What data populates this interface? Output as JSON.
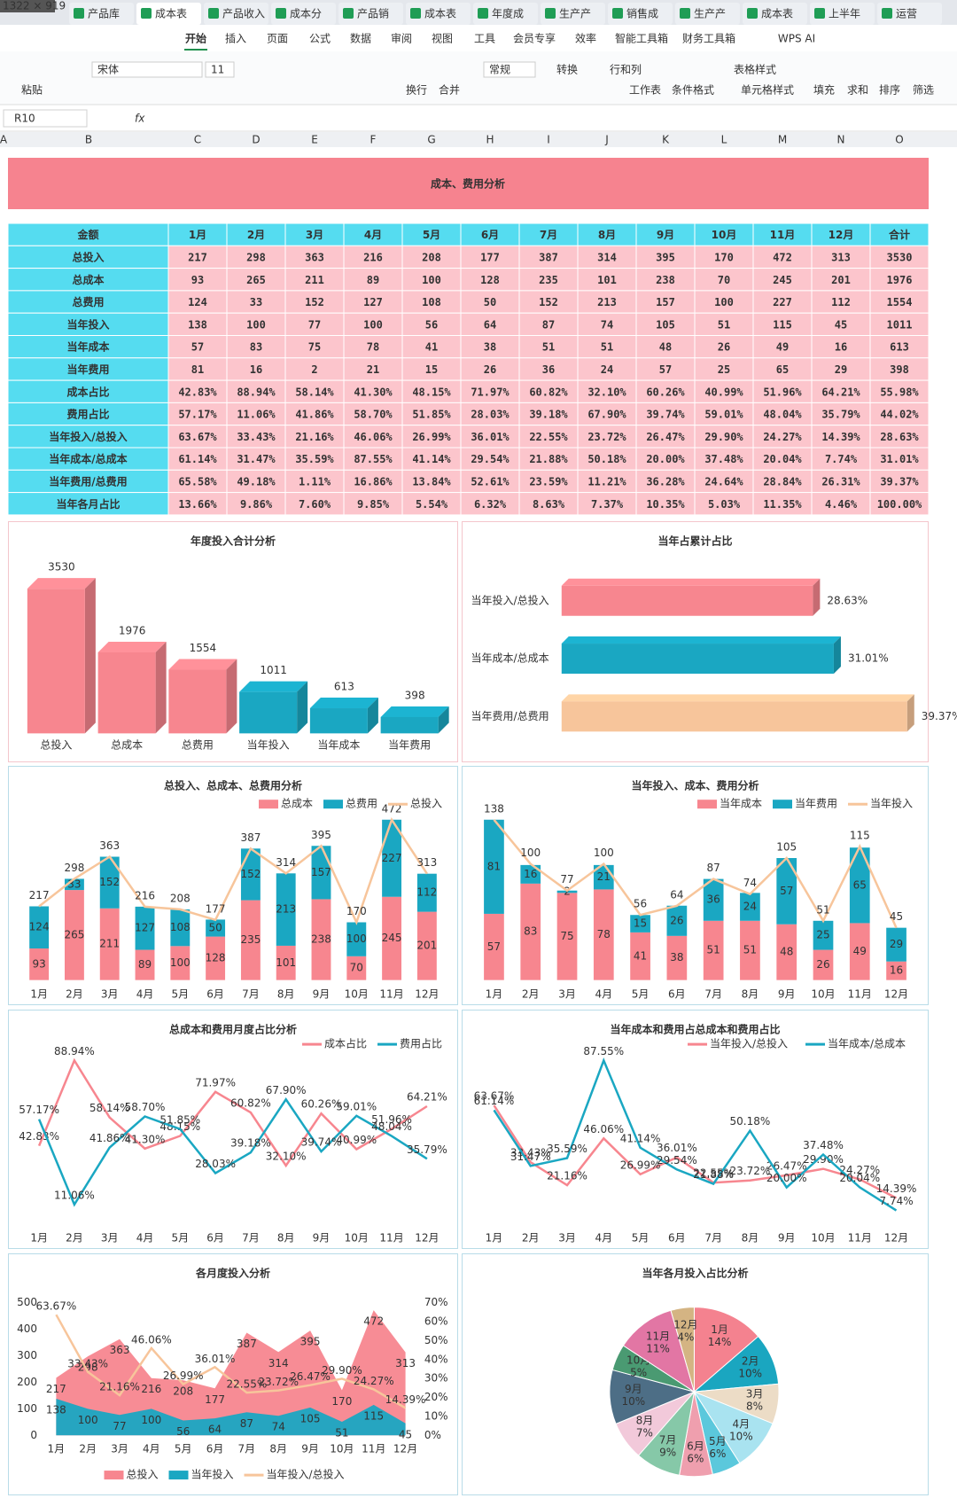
{
  "toolbar": {
    "overlay": "1322 × 919",
    "tabs": [
      "产品库",
      "成本表",
      "产品收入",
      "成本分",
      "产品销",
      "成本表",
      "年度成",
      "生产产",
      "销售成",
      "生产产",
      "成本表",
      "上半年",
      "运营"
    ],
    "menu": [
      "开始",
      "插入",
      "页面",
      "公式",
      "数据",
      "审阅",
      "视图",
      "工具",
      "会员专享",
      "效率",
      "智能工具箱",
      "财务工具箱",
      "WPS AI"
    ],
    "ribbon_top": [
      "宋体",
      "11",
      "常规",
      "转换",
      "行和列",
      "表格样式"
    ],
    "ribbon_bottom": [
      "粘贴",
      "换行",
      "合并",
      "工作表",
      "条件格式",
      "单元格样式",
      "填充",
      "求和",
      "排序",
      "筛选"
    ],
    "name_box": "R10",
    "formula_label": "fx",
    "columns": [
      "A",
      "B",
      "C",
      "D",
      "E",
      "F",
      "G",
      "H",
      "I",
      "J",
      "K",
      "L",
      "M",
      "N",
      "O"
    ]
  },
  "table": {
    "title": "成本、费用分析",
    "header": [
      "金额",
      "1月",
      "2月",
      "3月",
      "4月",
      "5月",
      "6月",
      "7月",
      "8月",
      "9月",
      "10月",
      "11月",
      "12月",
      "合计"
    ],
    "rows": [
      [
        "总投入",
        217,
        298,
        363,
        216,
        208,
        177,
        387,
        314,
        395,
        170,
        472,
        313,
        3530
      ],
      [
        "总成本",
        93,
        265,
        211,
        89,
        100,
        128,
        235,
        101,
        238,
        70,
        245,
        201,
        1976
      ],
      [
        "总费用",
        124,
        33,
        152,
        127,
        108,
        50,
        152,
        213,
        157,
        100,
        227,
        112,
        1554
      ],
      [
        "当年投入",
        138,
        100,
        77,
        100,
        56,
        64,
        87,
        74,
        105,
        51,
        115,
        45,
        1011
      ],
      [
        "当年成本",
        57,
        83,
        75,
        78,
        41,
        38,
        51,
        51,
        48,
        26,
        49,
        16,
        613
      ],
      [
        "当年费用",
        81,
        16,
        2,
        21,
        15,
        26,
        36,
        24,
        57,
        25,
        65,
        29,
        398
      ],
      [
        "成本占比",
        "42.83%",
        "88.94%",
        "58.14%",
        "41.30%",
        "48.15%",
        "71.97%",
        "60.82%",
        "32.10%",
        "60.26%",
        "40.99%",
        "51.96%",
        "64.21%",
        "55.98%"
      ],
      [
        "费用占比",
        "57.17%",
        "11.06%",
        "41.86%",
        "58.70%",
        "51.85%",
        "28.03%",
        "39.18%",
        "67.90%",
        "39.74%",
        "59.01%",
        "48.04%",
        "35.79%",
        "44.02%"
      ],
      [
        "当年投入/总投入",
        "63.67%",
        "33.43%",
        "21.16%",
        "46.06%",
        "26.99%",
        "36.01%",
        "22.55%",
        "23.72%",
        "26.47%",
        "29.90%",
        "24.27%",
        "14.39%",
        "28.63%"
      ],
      [
        "当年成本/总成本",
        "61.14%",
        "31.47%",
        "35.59%",
        "87.55%",
        "41.14%",
        "29.54%",
        "21.88%",
        "50.18%",
        "20.00%",
        "37.48%",
        "20.04%",
        "7.74%",
        "31.01%"
      ],
      [
        "当年费用/总费用",
        "65.58%",
        "49.18%",
        "1.11%",
        "16.86%",
        "13.84%",
        "52.61%",
        "23.59%",
        "11.21%",
        "36.28%",
        "24.64%",
        "28.84%",
        "26.31%",
        "39.37%"
      ],
      [
        "当年各月占比",
        "13.66%",
        "9.86%",
        "7.60%",
        "9.85%",
        "5.54%",
        "6.32%",
        "8.63%",
        "7.37%",
        "10.35%",
        "5.03%",
        "11.35%",
        "4.46%",
        "100.00%"
      ]
    ]
  },
  "chart_data": [
    {
      "type": "bar",
      "title": "年度投入合计分析",
      "title_color": "#f09aa5",
      "categories": [
        "总投入",
        "总成本",
        "总费用",
        "当年投入",
        "当年成本",
        "当年费用"
      ],
      "values": [
        3530,
        1976,
        1554,
        1011,
        613,
        398
      ],
      "colors": [
        "#f7868f",
        "#f7868f",
        "#f7868f",
        "#1aa7c2",
        "#1aa7c2",
        "#1aa7c2"
      ]
    },
    {
      "type": "hbar",
      "title": "当年占累计占比",
      "title_color": "#f09aa5",
      "categories": [
        "当年投入/总投入",
        "当年成本/总成本",
        "当年费用/总费用"
      ],
      "values": [
        28.63,
        31.01,
        39.37
      ],
      "value_labels": [
        "28.63%",
        "31.01%",
        "39.37%"
      ],
      "colors": [
        "#f7868f",
        "#1aa7c2",
        "#f7c59b"
      ]
    },
    {
      "type": "combo",
      "title": "总投入、总成本、总费用分析",
      "title_color": "#1a9fc0",
      "categories": [
        "1月",
        "2月",
        "3月",
        "4月",
        "5月",
        "6月",
        "7月",
        "8月",
        "9月",
        "10月",
        "11月",
        "12月"
      ],
      "series": [
        {
          "name": "总成本",
          "color": "#f7868f",
          "kind": "bar",
          "values": [
            93,
            265,
            211,
            89,
            100,
            128,
            235,
            101,
            238,
            70,
            245,
            201
          ]
        },
        {
          "name": "总费用",
          "color": "#1aa7c2",
          "kind": "bar",
          "values": [
            124,
            33,
            152,
            127,
            108,
            50,
            152,
            213,
            157,
            100,
            227,
            112
          ]
        },
        {
          "name": "总投入",
          "color": "#f7c59b",
          "kind": "line",
          "values": [
            217,
            298,
            363,
            216,
            208,
            177,
            387,
            314,
            395,
            170,
            472,
            313
          ]
        }
      ]
    },
    {
      "type": "combo",
      "title": "当年投入、成本、费用分析",
      "title_color": "#1a9fc0",
      "categories": [
        "1月",
        "2月",
        "3月",
        "4月",
        "5月",
        "6月",
        "7月",
        "8月",
        "9月",
        "10月",
        "11月",
        "12月"
      ],
      "series": [
        {
          "name": "当年成本",
          "color": "#f7868f",
          "kind": "bar",
          "values": [
            57,
            83,
            75,
            78,
            41,
            38,
            51,
            51,
            48,
            26,
            49,
            16
          ]
        },
        {
          "name": "当年费用",
          "color": "#1aa7c2",
          "kind": "bar",
          "values": [
            81,
            16,
            2,
            21,
            15,
            26,
            36,
            24,
            57,
            25,
            65,
            29
          ]
        },
        {
          "name": "当年投入",
          "color": "#f7c59b",
          "kind": "line",
          "values": [
            138,
            100,
            77,
            100,
            56,
            64,
            87,
            74,
            105,
            51,
            115,
            45
          ]
        }
      ]
    },
    {
      "type": "line",
      "title": "总成本和费用月度占比分析",
      "title_color": "#f09aa5",
      "categories": [
        "1月",
        "2月",
        "3月",
        "4月",
        "5月",
        "6月",
        "7月",
        "8月",
        "9月",
        "10月",
        "11月",
        "12月"
      ],
      "series": [
        {
          "name": "成本占比",
          "color": "#f7868f",
          "values": [
            42.83,
            88.94,
            58.14,
            41.3,
            48.15,
            71.97,
            60.82,
            32.1,
            60.26,
            40.99,
            51.96,
            64.21
          ],
          "value_labels": [
            "42.83%",
            "88.94%",
            "58.14%",
            "41.30%",
            "48.15%",
            "71.97%",
            "60.82%",
            "32.10%",
            "60.26%",
            "40.99%",
            "51.96%",
            "64.21%"
          ]
        },
        {
          "name": "费用占比",
          "color": "#1aa7c2",
          "values": [
            57.17,
            11.06,
            41.86,
            58.7,
            51.85,
            28.03,
            39.18,
            67.9,
            39.74,
            59.01,
            48.04,
            35.79
          ],
          "value_labels": [
            "57.17%",
            "11.06%",
            "41.86%",
            "58.70%",
            "51.85%",
            "28.03%",
            "39.18%",
            "67.90%",
            "39.74%",
            "59.01%",
            "48.04%",
            "35.79%"
          ]
        }
      ]
    },
    {
      "type": "line",
      "title": "当年成本和费用占总成本和费用占比",
      "title_color": "#f09aa5",
      "categories": [
        "1月",
        "2月",
        "3月",
        "4月",
        "5月",
        "6月",
        "7月",
        "8月",
        "9月",
        "10月",
        "11月",
        "12月"
      ],
      "series": [
        {
          "name": "当年投入/总投入",
          "color": "#f7868f",
          "values": [
            63.67,
            33.43,
            21.16,
            46.06,
            26.99,
            36.01,
            22.55,
            23.72,
            26.47,
            29.9,
            24.27,
            14.39
          ],
          "value_labels": [
            "63.67%",
            "33.43%",
            "21.16%",
            "46.06%",
            "26.99%",
            "36.01%",
            "22.55%",
            "23.72%",
            "26.47%",
            "29.90%",
            "24.27%",
            "14.39%"
          ]
        },
        {
          "name": "当年成本/总成本",
          "color": "#1aa7c2",
          "values": [
            61.14,
            31.47,
            35.59,
            87.55,
            41.14,
            29.54,
            21.88,
            50.18,
            20.0,
            37.48,
            20.04,
            7.74
          ],
          "value_labels": [
            "61.14%",
            "31.47%",
            "35.59%",
            "87.55%",
            "41.14%",
            "29.54%",
            "21.88%",
            "50.18%",
            "20.00%",
            "37.48%",
            "20.04%",
            "7.74%"
          ]
        }
      ]
    },
    {
      "type": "area",
      "title": "各月度投入分析",
      "title_color": "#1a9fc0",
      "categories": [
        "1月",
        "2月",
        "3月",
        "4月",
        "5月",
        "6月",
        "7月",
        "8月",
        "9月",
        "10月",
        "11月",
        "12月"
      ],
      "ylim": [
        0,
        500
      ],
      "yticks": [
        0,
        100,
        200,
        300,
        400,
        500
      ],
      "y2lim": [
        0,
        70
      ],
      "y2ticks": [
        {
          "value": 0,
          "label": "0%"
        },
        {
          "value": 10,
          "label": "10%"
        },
        {
          "value": 20,
          "label": "20%"
        },
        {
          "value": 30,
          "label": "30%"
        },
        {
          "value": 40,
          "label": "40%"
        },
        {
          "value": 50,
          "label": "50%"
        },
        {
          "value": 60,
          "label": "60%"
        },
        {
          "value": 70,
          "label": "70%"
        }
      ],
      "series": [
        {
          "name": "总投入",
          "color": "#f7868f",
          "kind": "area",
          "values": [
            217,
            298,
            363,
            216,
            208,
            177,
            387,
            314,
            395,
            170,
            472,
            313
          ]
        },
        {
          "name": "当年投入",
          "color": "#1aa7c2",
          "kind": "area",
          "values": [
            138,
            100,
            77,
            100,
            56,
            64,
            87,
            74,
            105,
            51,
            115,
            45
          ]
        },
        {
          "name": "当年投入/总投入",
          "color": "#f7c59b",
          "kind": "line",
          "axis": "y2",
          "values": [
            63.67,
            33.43,
            21.16,
            46.06,
            26.99,
            36.01,
            22.55,
            23.72,
            26.47,
            29.9,
            24.27,
            14.39
          ],
          "value_labels": [
            "63.67%",
            "33.43%",
            "21.16%",
            "46.06%",
            "26.99%",
            "36.01%",
            "22.55%",
            "23.72%",
            "26.47%",
            "29.90%",
            "24.27%",
            "14.39%"
          ]
        }
      ]
    },
    {
      "type": "pie",
      "title": "当年各月投入占比分析",
      "title_color": "#1a9fc0",
      "categories": [
        "1月",
        "2月",
        "3月",
        "4月",
        "5月",
        "6月",
        "7月",
        "8月",
        "9月",
        "10月",
        "11月",
        "12月"
      ],
      "values": [
        13.66,
        9.86,
        7.6,
        9.85,
        5.54,
        6.32,
        8.63,
        7.37,
        10.35,
        5.03,
        11.35,
        4.46
      ],
      "value_labels": [
        "14%",
        "10%",
        "8%",
        "10%",
        "6%",
        "6%",
        "9%",
        "7%",
        "10%",
        "5%",
        "11%",
        "4%"
      ],
      "colors": [
        "#f4828f",
        "#1aa6c0",
        "#ecdcc6",
        "#a9e3f0",
        "#5bc8dc",
        "#ef9fae",
        "#86c8a8",
        "#f2c9da",
        "#4d6e86",
        "#4a9a72",
        "#e276a4",
        "#d4b483"
      ]
    }
  ]
}
